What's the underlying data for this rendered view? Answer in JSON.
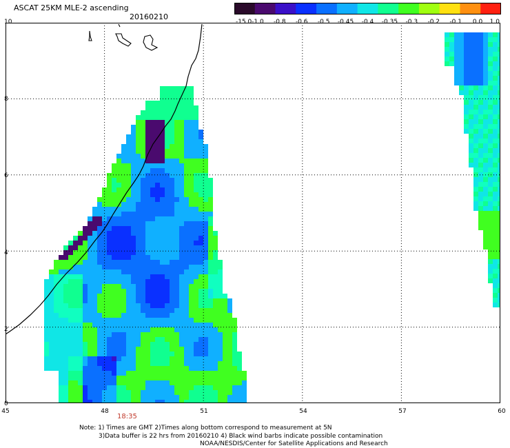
{
  "header": {
    "title": "ASCAT 25KM MLE-2 ascending",
    "date": "20160210"
  },
  "colorbar": {
    "labels": [
      "-15.0",
      "-1.0",
      "-0.8",
      "-0.6",
      "-0.5",
      "-0.45",
      "-0.4",
      "-0.35",
      "-0.3",
      "-0.2",
      "-0.1",
      "0.0",
      "1.0"
    ],
    "colors": [
      "#2a0a2a",
      "#4a0a6e",
      "#3a10c8",
      "#0a30ff",
      "#0a70ff",
      "#10b0ff",
      "#10e6e6",
      "#10ff90",
      "#40ff20",
      "#a0ff10",
      "#ffe010",
      "#ff9010",
      "#ff2010"
    ]
  },
  "axes": {
    "x_ticks": [
      "45",
      "48",
      "51",
      "54",
      "57",
      "60"
    ],
    "y_ticks": [
      "10",
      "8",
      "6",
      "4",
      "2",
      "0"
    ],
    "xlim": [
      45,
      60
    ],
    "ylim": [
      0,
      10
    ]
  },
  "time_label": "18:35",
  "notes": [
    "Note: 1) Times are GMT 2)Times along bottom correspond to measurement at 5N",
    "3)Data buffer is 22 hrs from 20160210 4) Black wind barbs indicate possible contamination",
    "NOAA/NESDIS/Center for Satellite Applications and Research"
  ]
}
